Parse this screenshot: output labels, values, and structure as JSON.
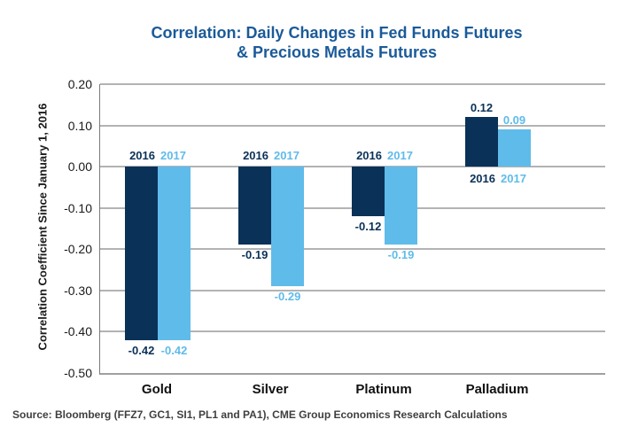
{
  "title": {
    "line1": "Correlation: Daily Changes in Fed Funds Futures",
    "line2": "& Precious Metals Futures"
  },
  "source": "Source: Bloomberg (FFZ7, GC1, SI1, PL1 and PA1), CME Group Economics Research Calculations",
  "colors": {
    "series_2016": "#0a3157",
    "series_2017": "#5fbbea",
    "title_text": "#1b5a99",
    "gridline": "#b3b3b3",
    "axis_line": "#7a7a7a",
    "tick_text": "#1a1a1a",
    "category_text": "#111111",
    "source_text": "#3f3f3f",
    "background": "#ffffff"
  },
  "chart_data": {
    "type": "bar",
    "title": "Correlation: Daily Changes in Fed Funds Futures & Precious Metals Futures",
    "xlabel": "",
    "ylabel": "Correlation Coefficient Since January 1, 2016",
    "categories": [
      "Gold",
      "Silver",
      "Platinum",
      "Palladium"
    ],
    "series": [
      {
        "name": "2016",
        "color": "#0a3157",
        "values": [
          -0.42,
          -0.19,
          -0.12,
          0.12
        ],
        "labels": [
          "-0.42",
          "-0.19",
          "-0.12",
          "0.12"
        ]
      },
      {
        "name": "2017",
        "color": "#5fbbea",
        "values": [
          -0.42,
          -0.29,
          -0.19,
          0.09
        ],
        "labels": [
          "-0.42",
          "-0.29",
          "-0.19",
          "0.09"
        ]
      }
    ],
    "ylim": [
      -0.5,
      0.2
    ],
    "yticks": [
      "0.20",
      "0.10",
      "0.00",
      "-0.10",
      "-0.20",
      "-0.30",
      "-0.40",
      "-0.50"
    ],
    "grid": true,
    "legend_position": "none",
    "series_labels_shown_at_each_group": true
  }
}
